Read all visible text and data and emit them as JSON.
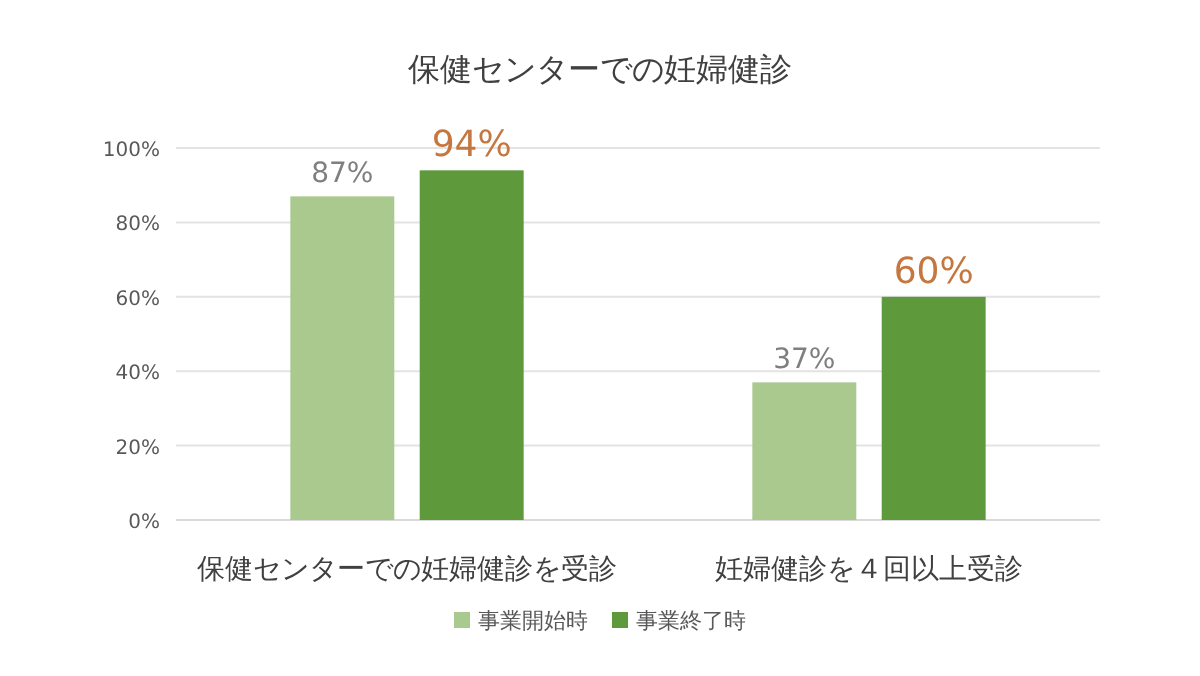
{
  "chart_data": {
    "type": "bar",
    "title": "保健センターでの妊婦健診",
    "categories": [
      "保健センターでの妊婦健診を受診",
      "妊婦健診を４回以上受診"
    ],
    "series": [
      {
        "name": "事業開始時",
        "color": "#a9c98f",
        "values": [
          87,
          37
        ],
        "value_labels": [
          "87%",
          "37%"
        ]
      },
      {
        "name": "事業終了時",
        "color": "#5e9a3c",
        "values": [
          94,
          60
        ],
        "value_labels": [
          "94%",
          "60%"
        ]
      }
    ],
    "ylim": [
      0,
      100
    ],
    "yticks": [
      {
        "value": 0,
        "label": "0%"
      },
      {
        "value": 20,
        "label": "20%"
      },
      {
        "value": 40,
        "label": "40%"
      },
      {
        "value": 60,
        "label": "60%"
      },
      {
        "value": 80,
        "label": "80%"
      },
      {
        "value": 100,
        "label": "100%"
      }
    ],
    "grid": "y",
    "legend": "bottom"
  }
}
